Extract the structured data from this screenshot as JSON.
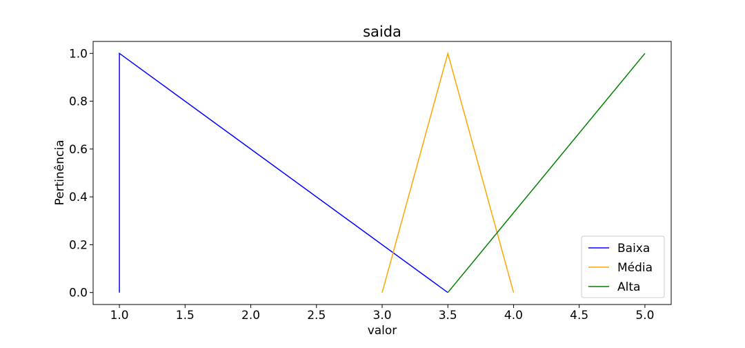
{
  "chart_data": {
    "type": "line",
    "title": "saida",
    "xlabel": "valor",
    "ylabel": "Pertinência",
    "xlim": [
      0.8,
      5.2
    ],
    "ylim": [
      -0.05,
      1.05
    ],
    "xticks": [
      1.0,
      1.5,
      2.0,
      2.5,
      3.0,
      3.5,
      4.0,
      4.5,
      5.0
    ],
    "xtick_labels": [
      "1.0",
      "1.5",
      "2.0",
      "2.5",
      "3.0",
      "3.5",
      "4.0",
      "4.5",
      "5.0"
    ],
    "yticks": [
      0.0,
      0.2,
      0.4,
      0.6,
      0.8,
      1.0
    ],
    "ytick_labels": [
      "0.0",
      "0.2",
      "0.4",
      "0.6",
      "0.8",
      "1.0"
    ],
    "grid": false,
    "legend_position": "lower-right",
    "series": [
      {
        "name": "Baixa",
        "color": "#0000ff",
        "x": [
          1.0,
          1.0,
          3.5
        ],
        "y": [
          0,
          1,
          0
        ]
      },
      {
        "name": "Média",
        "color": "#ffa500",
        "x": [
          3.0,
          3.5,
          4.0
        ],
        "y": [
          0,
          1,
          0
        ]
      },
      {
        "name": "Alta",
        "color": "#008000",
        "x": [
          3.5,
          5.0
        ],
        "y": [
          0,
          1
        ]
      }
    ]
  }
}
